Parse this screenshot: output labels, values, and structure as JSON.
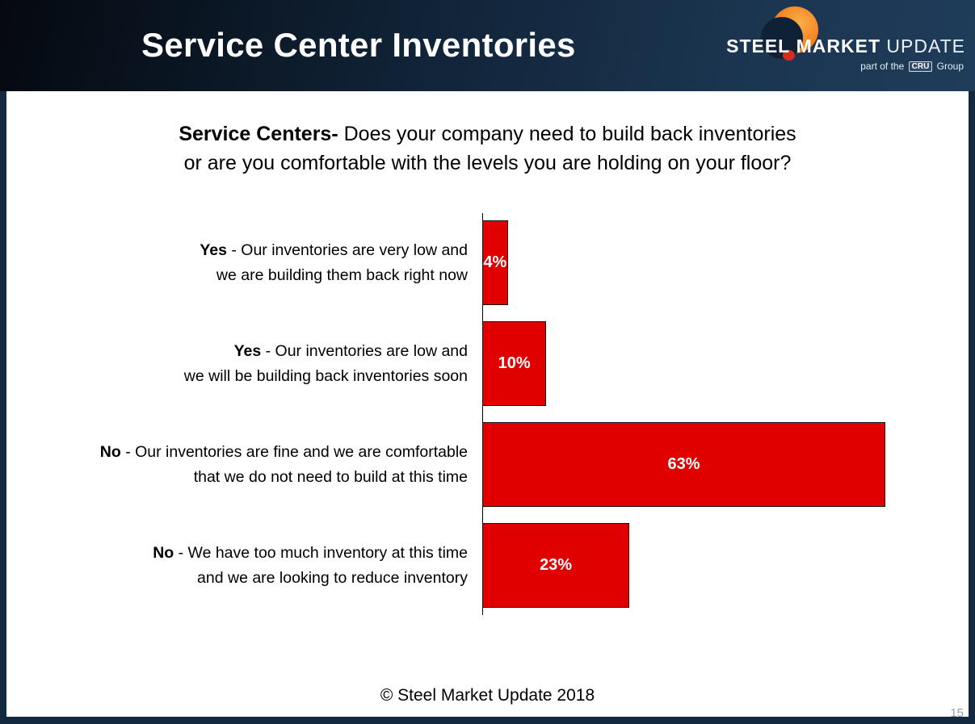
{
  "header": {
    "title": "Service Center Inventories",
    "logo": {
      "brand_steel": "STEEL",
      "brand_market": "MARKET",
      "brand_update": "UPDATE",
      "tagline_prefix": "part of the",
      "tagline_cru": "CRU",
      "tagline_suffix": "Group"
    }
  },
  "question": {
    "lead": "Service Centers-",
    "line1": "Does your company need to build back inventories",
    "line2": "or are you comfortable with the levels you are holding on your floor?"
  },
  "chart_data": {
    "type": "bar",
    "orientation": "horizontal",
    "title": "Service Centers- Does your company need to build back inventories or are you comfortable with the levels you are holding on your floor?",
    "xlabel": "",
    "ylabel": "",
    "xlim": [
      0,
      63
    ],
    "grid": false,
    "legend": false,
    "bar_color": "#e10000",
    "bar_border_color": "#141414",
    "value_label_color": "#ffffff",
    "categories": [
      "Yes - Our inventories are very low and we are building them back right now",
      "Yes - Our inventories are low and we will be building back inventories soon",
      "No - Our inventories are fine and we are comfortable that we do not need to build at this time",
      "No - We have too much inventory at this time and we are looking to reduce inventory"
    ],
    "values": [
      4,
      10,
      63,
      23
    ],
    "rows": [
      {
        "bold": "Yes",
        "line1": "- Our inventories are very low and",
        "line2": "we are building them back right now",
        "value": 4,
        "label": "4%"
      },
      {
        "bold": "Yes",
        "line1": "- Our inventories are low and",
        "line2": "we will be building back inventories soon",
        "value": 10,
        "label": "10%"
      },
      {
        "bold": "No",
        "line1": "- Our inventories are fine and we are comfortable",
        "line2": "that we do not need to build at this time",
        "value": 63,
        "label": "63%"
      },
      {
        "bold": "No",
        "line1": "- We have too much inventory at this time",
        "line2": "and we are looking to reduce inventory",
        "value": 23,
        "label": "23%"
      }
    ]
  },
  "footer": {
    "copyright": "© Steel Market Update 2018",
    "page_number": "15"
  }
}
